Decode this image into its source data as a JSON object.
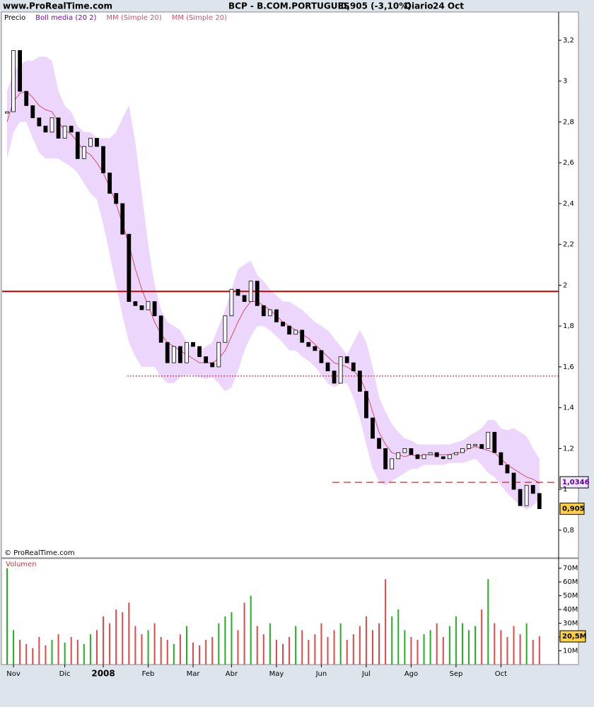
{
  "header": {
    "site": "www.ProRealTime.com",
    "instrument": "BCP - B.COM.PORTUGUES",
    "quote": "0,905 (-3,10%)",
    "period": "Diario",
    "date": "24 Oct",
    "copyright": "© ProRealTime.com"
  },
  "chart_data": [
    {
      "type": "candlestick",
      "legend": [
        {
          "text": "Precio",
          "color": "#000000"
        },
        {
          "text": "Boll media (20 2)",
          "color": "#8000c0"
        },
        {
          "text": "MM (Simple 20)",
          "color": "#d05070"
        },
        {
          "text": "MM (Simple 20)",
          "color": "#d05070"
        }
      ],
      "ylim": [
        0.668,
        3.335
      ],
      "yticks": [
        {
          "value": 0.8,
          "label": "0,8"
        },
        1,
        {
          "value": 1.2,
          "label": "1,2"
        },
        {
          "value": 1.4,
          "label": "1,4"
        },
        {
          "value": 1.6,
          "label": "1,6"
        },
        {
          "value": 1.8,
          "label": "1,8"
        },
        2,
        {
          "value": 2.2,
          "label": "2,2"
        },
        {
          "value": 2.4,
          "label": "2,4"
        },
        {
          "value": 2.6,
          "label": "2,6"
        },
        {
          "value": 2.8,
          "label": "2,8"
        },
        3,
        {
          "value": 3.2,
          "label": "3,2"
        }
      ],
      "close": [
        2.85,
        3.15,
        2.95,
        2.88,
        2.82,
        2.78,
        2.75,
        2.82,
        2.72,
        2.78,
        2.75,
        2.62,
        2.68,
        2.72,
        2.68,
        2.55,
        2.45,
        2.4,
        2.25,
        1.92,
        1.9,
        1.88,
        1.92,
        1.85,
        1.72,
        1.62,
        1.7,
        1.62,
        1.72,
        1.7,
        1.65,
        1.62,
        1.6,
        1.72,
        1.85,
        1.98,
        1.95,
        1.92,
        2.02,
        1.9,
        1.85,
        1.88,
        1.82,
        1.8,
        1.76,
        1.78,
        1.72,
        1.7,
        1.68,
        1.62,
        1.58,
        1.52,
        1.65,
        1.62,
        1.58,
        1.48,
        1.35,
        1.25,
        1.2,
        1.1,
        1.15,
        1.18,
        1.2,
        1.17,
        1.15,
        1.17,
        1.18,
        1.16,
        1.15,
        1.17,
        1.18,
        1.2,
        1.22,
        1.22,
        1.2,
        1.28,
        1.18,
        1.12,
        1.08,
        1.0,
        0.92,
        1.02,
        0.98,
        0.905
      ],
      "bollinger": {
        "color": "#ecd6fb",
        "upper": [
          2.95,
          3.05,
          3.08,
          3.1,
          3.1,
          3.12,
          3.12,
          3.1,
          2.95,
          2.88,
          2.85,
          2.78,
          2.75,
          2.75,
          2.72,
          2.72,
          2.72,
          2.75,
          2.82,
          2.88,
          2.7,
          2.45,
          2.2,
          2.0,
          1.88,
          1.82,
          1.8,
          1.78,
          1.72,
          1.7,
          1.68,
          1.7,
          1.72,
          1.8,
          1.88,
          1.98,
          2.08,
          2.1,
          2.12,
          2.05,
          2.02,
          1.98,
          1.95,
          1.92,
          1.92,
          1.9,
          1.88,
          1.85,
          1.82,
          1.8,
          1.78,
          1.74,
          1.7,
          1.66,
          1.72,
          1.78,
          1.72,
          1.6,
          1.45,
          1.38,
          1.32,
          1.28,
          1.25,
          1.24,
          1.22,
          1.22,
          1.22,
          1.22,
          1.22,
          1.22,
          1.23,
          1.24,
          1.26,
          1.28,
          1.3,
          1.34,
          1.34,
          1.3,
          1.29,
          1.3,
          1.28,
          1.26,
          1.2,
          1.15
        ],
        "lower": [
          2.62,
          2.75,
          2.8,
          2.8,
          2.72,
          2.65,
          2.62,
          2.62,
          2.62,
          2.6,
          2.58,
          2.55,
          2.5,
          2.45,
          2.42,
          2.3,
          2.15,
          2.0,
          1.85,
          1.72,
          1.65,
          1.6,
          1.6,
          1.6,
          1.55,
          1.52,
          1.52,
          1.55,
          1.56,
          1.56,
          1.55,
          1.54,
          1.55,
          1.52,
          1.48,
          1.5,
          1.58,
          1.68,
          1.75,
          1.8,
          1.8,
          1.78,
          1.75,
          1.72,
          1.68,
          1.68,
          1.65,
          1.63,
          1.6,
          1.56,
          1.52,
          1.5,
          1.52,
          1.52,
          1.45,
          1.35,
          1.22,
          1.1,
          1.04,
          1.02,
          1.04,
          1.06,
          1.08,
          1.1,
          1.1,
          1.12,
          1.12,
          1.12,
          1.12,
          1.13,
          1.13,
          1.13,
          1.14,
          1.15,
          1.12,
          1.08,
          1.06,
          1.02,
          0.98,
          0.95,
          0.92,
          0.9,
          0.92,
          0.95
        ]
      },
      "ma": {
        "color": "#d05070",
        "values": [
          2.8,
          2.9,
          2.94,
          2.95,
          2.92,
          2.88,
          2.86,
          2.85,
          2.8,
          2.76,
          2.74,
          2.7,
          2.66,
          2.64,
          2.6,
          2.55,
          2.48,
          2.4,
          2.3,
          2.2,
          2.08,
          1.98,
          1.9,
          1.82,
          1.76,
          1.72,
          1.7,
          1.68,
          1.66,
          1.64,
          1.62,
          1.62,
          1.62,
          1.64,
          1.68,
          1.75,
          1.82,
          1.88,
          1.92,
          1.92,
          1.9,
          1.88,
          1.85,
          1.82,
          1.8,
          1.78,
          1.76,
          1.74,
          1.71,
          1.68,
          1.65,
          1.62,
          1.61,
          1.6,
          1.58,
          1.55,
          1.48,
          1.38,
          1.28,
          1.22,
          1.18,
          1.17,
          1.16,
          1.17,
          1.16,
          1.17,
          1.17,
          1.17,
          1.17,
          1.17,
          1.18,
          1.18,
          1.2,
          1.21,
          1.2,
          1.19,
          1.18,
          1.15,
          1.12,
          1.1,
          1.08,
          1.06,
          1.05,
          1.03
        ]
      },
      "levels": [
        {
          "value": 1.97,
          "color": "#e00000",
          "style": "solid"
        },
        {
          "value": 1.555,
          "color": "#e00000",
          "style": "dotted"
        },
        {
          "value": 1.0346,
          "label": "1,0346",
          "color": "#c00000",
          "style": "dashed"
        }
      ],
      "last": {
        "value": 0.905,
        "label": "0,905"
      }
    },
    {
      "type": "bar",
      "title": "Volumen",
      "ylim": [
        0,
        77
      ],
      "yticks": [
        {
          "value": 10,
          "label": "10M"
        },
        {
          "value": 20,
          "label": "20M"
        },
        {
          "value": 30,
          "label": "30M"
        },
        {
          "value": 40,
          "label": "40M"
        },
        {
          "value": 50,
          "label": "50M"
        },
        {
          "value": 60,
          "label": "60M"
        },
        {
          "value": 70,
          "label": "70M"
        }
      ],
      "categories": [
        null,
        "Nov",
        null,
        null,
        null,
        null,
        null,
        null,
        null,
        "Dic",
        null,
        null,
        null,
        null,
        null,
        "2008",
        null,
        null,
        null,
        null,
        null,
        null,
        "Feb",
        null,
        null,
        null,
        null,
        null,
        null,
        "Mar",
        null,
        null,
        null,
        null,
        null,
        "Abr",
        null,
        null,
        null,
        null,
        null,
        null,
        "May",
        null,
        null,
        null,
        null,
        null,
        null,
        "Jun",
        null,
        null,
        null,
        null,
        null,
        null,
        "Jul",
        null,
        null,
        null,
        null,
        null,
        null,
        "Ago",
        null,
        null,
        null,
        null,
        null,
        null,
        "Sep",
        null,
        null,
        null,
        null,
        null,
        null,
        "Oct",
        null,
        null,
        null,
        null,
        null,
        null
      ],
      "colors": {
        "up": "#22b022",
        "down": "#e04848"
      },
      "values": [
        70,
        25,
        18,
        15,
        12,
        20,
        14,
        18,
        22,
        16,
        20,
        18,
        15,
        22,
        25,
        35,
        30,
        40,
        38,
        45,
        28,
        22,
        25,
        30,
        20,
        18,
        15,
        22,
        28,
        16,
        14,
        18,
        20,
        30,
        35,
        38,
        25,
        45,
        50,
        28,
        22,
        30,
        18,
        15,
        20,
        28,
        25,
        18,
        22,
        30,
        20,
        25,
        30,
        18,
        22,
        28,
        35,
        25,
        30,
        62,
        35,
        40,
        25,
        20,
        18,
        22,
        25,
        30,
        20,
        28,
        35,
        30,
        25,
        28,
        40,
        62,
        30,
        25,
        20,
        28,
        22,
        30,
        18,
        20.5
      ],
      "last": {
        "value": 20.5,
        "label": "20,5M"
      }
    }
  ]
}
